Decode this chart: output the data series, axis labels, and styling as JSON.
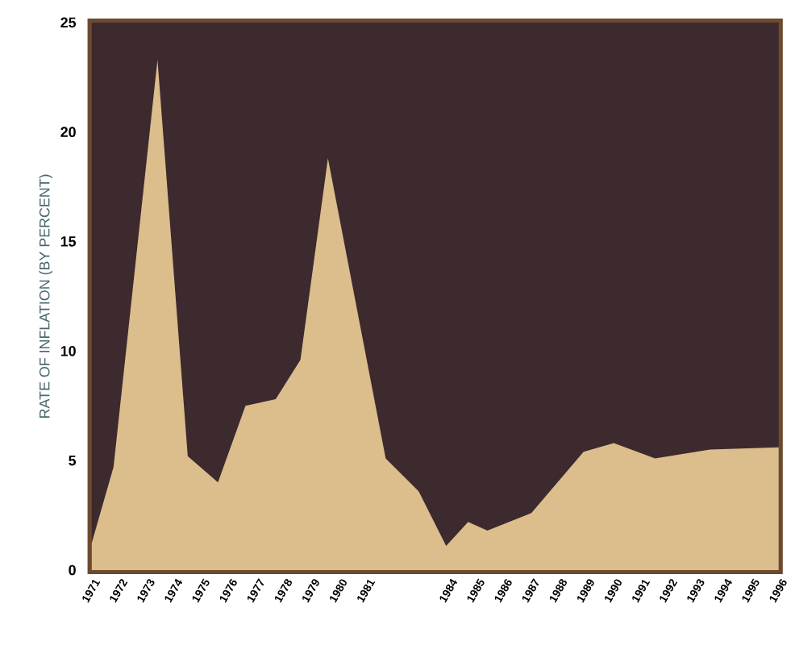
{
  "chart_data": {
    "type": "area",
    "ylabel": "RATE OF INFLATION (BY PERCENT)",
    "x": [
      1971,
      1971.8,
      1973.4,
      1974.5,
      1975.6,
      1976.6,
      1977.7,
      1978.6,
      1979.6,
      1981.7,
      1982.9,
      1983.9,
      1984.7,
      1985.4,
      1987.0,
      1988.9,
      1990.0,
      1991.5,
      1993.5,
      1996
    ],
    "values": [
      1.2,
      4.7,
      23.3,
      5.2,
      4.0,
      7.5,
      7.8,
      9.6,
      18.8,
      5.1,
      3.6,
      1.1,
      2.2,
      1.8,
      2.6,
      5.4,
      5.8,
      5.1,
      5.5,
      5.6
    ],
    "color": "#dcbd8c",
    "xlim": [
      1971,
      1996
    ],
    "ylim": [
      0,
      25
    ],
    "xticks": [
      1971,
      1972,
      1973,
      1974,
      1975,
      1976,
      1977,
      1978,
      1979,
      1980,
      1981,
      1984,
      1985,
      1986,
      1987,
      1988,
      1989,
      1990,
      1991,
      1992,
      1993,
      1994,
      1995,
      1996
    ],
    "yticks": [
      0,
      5,
      10,
      15,
      20,
      25
    ]
  }
}
